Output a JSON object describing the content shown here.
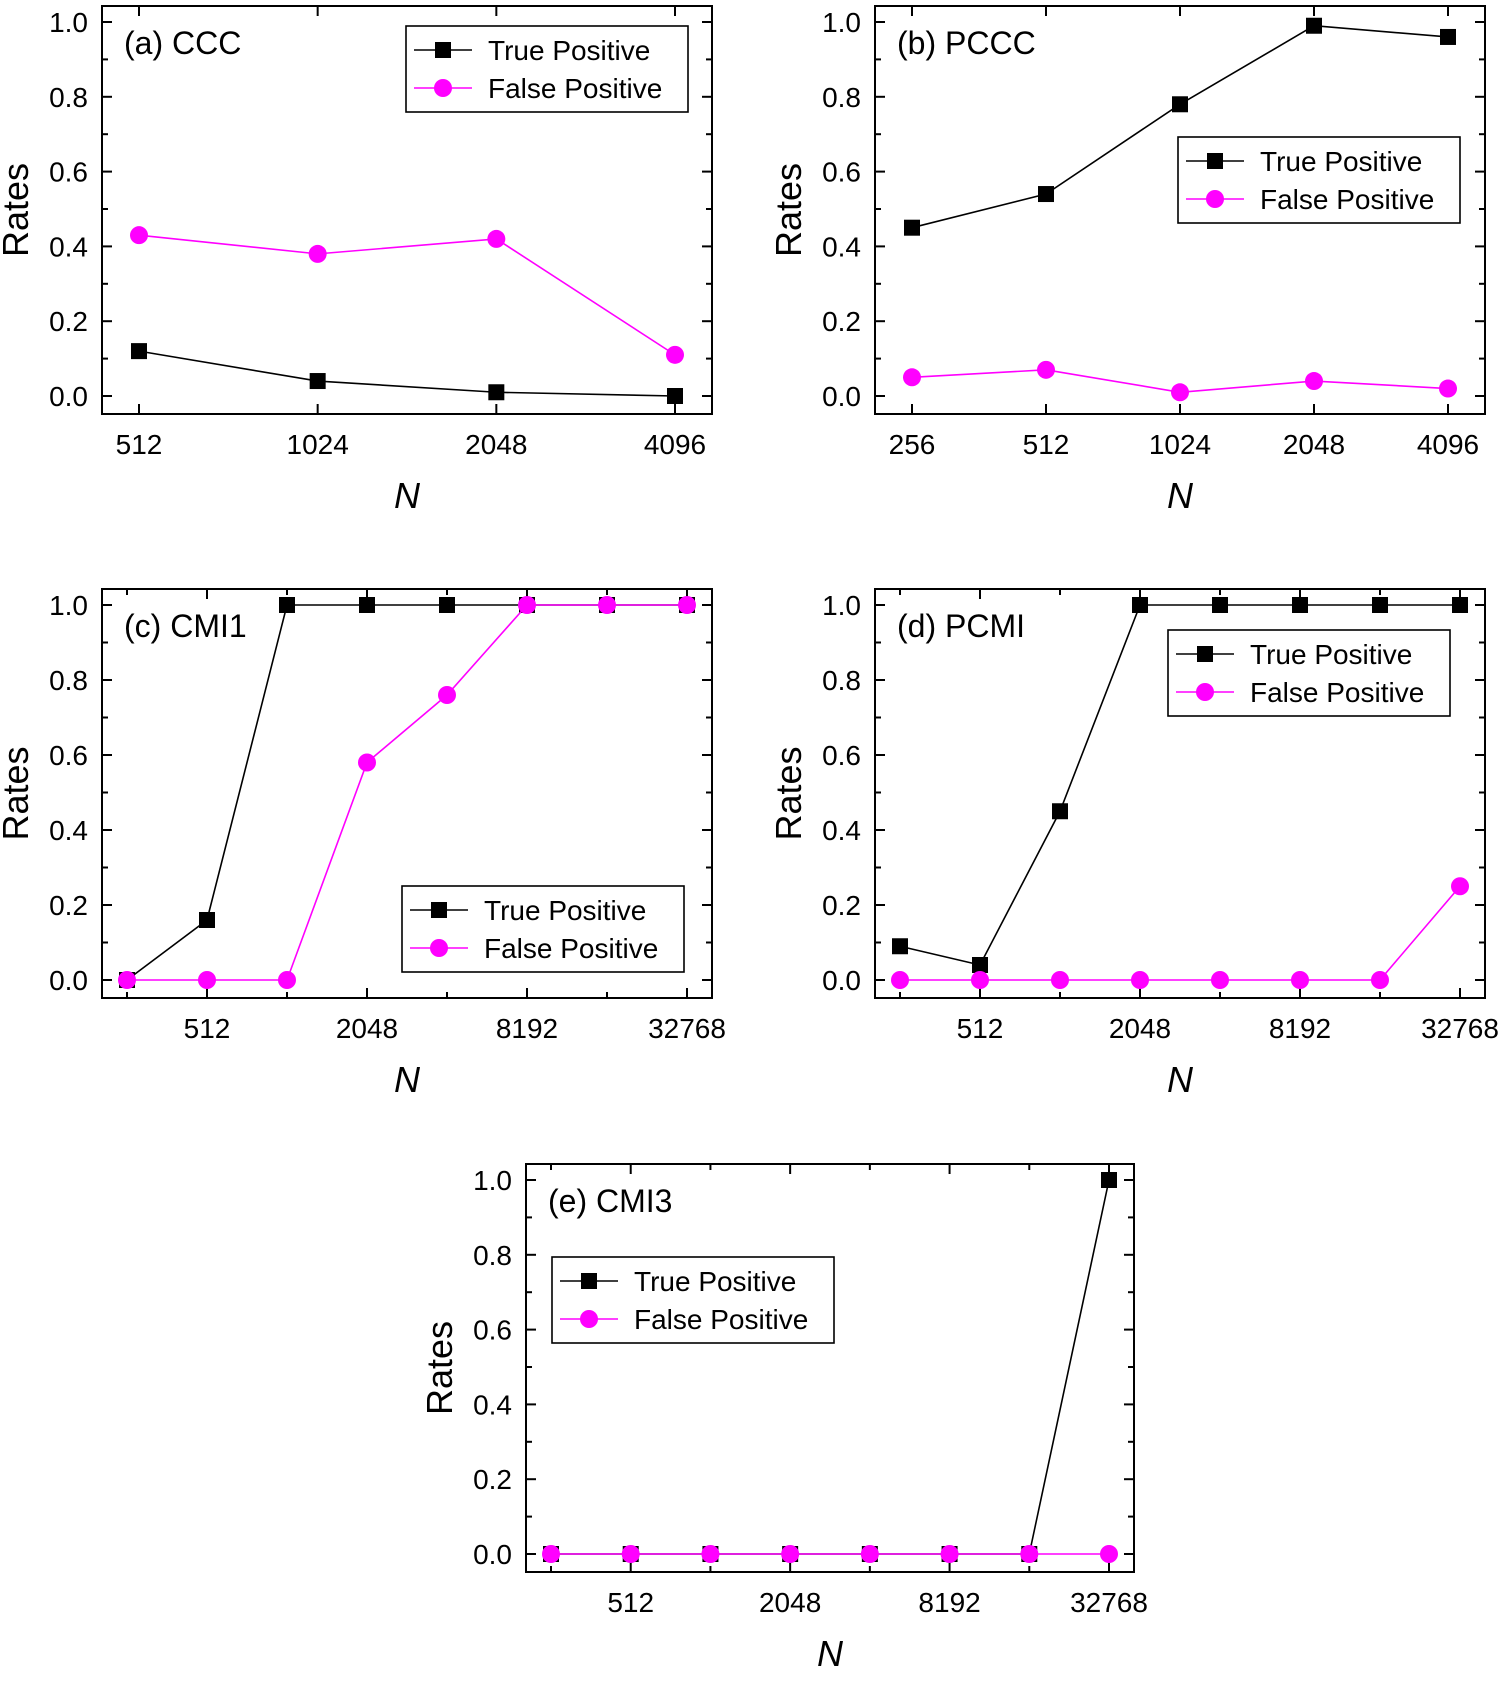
{
  "chart_data": [
    {
      "type": "line",
      "title": "(a)  CCC",
      "xlabel": "N",
      "ylabel": "Rates",
      "x": [
        512,
        1024,
        2048,
        4096
      ],
      "x_scale": "log2",
      "xticks": [
        "512",
        "1024",
        "2048",
        "4096"
      ],
      "ylim": [
        0,
        1.0
      ],
      "yticks": [
        "0.0",
        "0.2",
        "0.4",
        "0.6",
        "0.8",
        "1.0"
      ],
      "legend_position": "top-right",
      "series": [
        {
          "name": "True Positive",
          "values": [
            0.12,
            0.04,
            0.01,
            0.0
          ],
          "color": "#000000",
          "marker": "square"
        },
        {
          "name": "False Positive",
          "values": [
            0.43,
            0.38,
            0.42,
            0.11
          ],
          "color": "#ff00ff",
          "marker": "circle"
        }
      ]
    },
    {
      "type": "line",
      "title": "(b) PCCC",
      "xlabel": "N",
      "ylabel": "Rates",
      "x": [
        256,
        512,
        1024,
        2048,
        4096
      ],
      "x_scale": "log2",
      "xticks": [
        "256",
        "512",
        "1024",
        "2048",
        "4096"
      ],
      "ylim": [
        0,
        1.0
      ],
      "yticks": [
        "0.0",
        "0.2",
        "0.4",
        "0.6",
        "0.8",
        "1.0"
      ],
      "legend_position": "middle-right",
      "series": [
        {
          "name": "True Positive",
          "values": [
            0.45,
            0.54,
            0.78,
            0.99,
            0.96
          ],
          "color": "#000000",
          "marker": "square"
        },
        {
          "name": "False Positive",
          "values": [
            0.05,
            0.07,
            0.01,
            0.04,
            0.02
          ],
          "color": "#ff00ff",
          "marker": "circle"
        }
      ]
    },
    {
      "type": "line",
      "title": "(c) CMI1",
      "xlabel": "N",
      "ylabel": "Rates",
      "x": [
        256,
        512,
        1024,
        2048,
        4096,
        8192,
        16384,
        32768
      ],
      "x_scale": "log2",
      "xticks": [
        "512",
        "2048",
        "8192",
        "32768"
      ],
      "ylim": [
        0,
        1.0
      ],
      "yticks": [
        "0.0",
        "0.2",
        "0.4",
        "0.6",
        "0.8",
        "1.0"
      ],
      "legend_position": "bottom-right",
      "series": [
        {
          "name": "True Positive",
          "values": [
            0.0,
            0.16,
            1.0,
            1.0,
            1.0,
            1.0,
            1.0,
            1.0
          ],
          "color": "#000000",
          "marker": "square"
        },
        {
          "name": "False Positive",
          "values": [
            0.0,
            0.0,
            0.0,
            0.58,
            0.76,
            1.0,
            1.0,
            1.0
          ],
          "color": "#ff00ff",
          "marker": "circle"
        }
      ]
    },
    {
      "type": "line",
      "title": "(d) PCMI",
      "xlabel": "N",
      "ylabel": "Rates",
      "x": [
        256,
        512,
        1024,
        2048,
        4096,
        8192,
        16384,
        32768
      ],
      "x_scale": "log2",
      "xticks": [
        "512",
        "2048",
        "8192",
        "32768"
      ],
      "ylim": [
        0,
        1.0
      ],
      "yticks": [
        "0.0",
        "0.2",
        "0.4",
        "0.6",
        "0.8",
        "1.0"
      ],
      "legend_position": "top-right",
      "series": [
        {
          "name": "True Positive",
          "values": [
            0.09,
            0.04,
            0.45,
            1.0,
            1.0,
            1.0,
            1.0,
            1.0
          ],
          "color": "#000000",
          "marker": "square"
        },
        {
          "name": "False Positive",
          "values": [
            0.0,
            0.0,
            0.0,
            0.0,
            0.0,
            0.0,
            0.0,
            0.25
          ],
          "color": "#ff00ff",
          "marker": "circle"
        }
      ]
    },
    {
      "type": "line",
      "title": "(e) CMI3",
      "xlabel": "N",
      "ylabel": "Rates",
      "x": [
        256,
        512,
        1024,
        2048,
        4096,
        8192,
        16384,
        32768
      ],
      "x_scale": "log2",
      "xticks": [
        "512",
        "2048",
        "8192",
        "32768"
      ],
      "ylim": [
        0,
        1.0
      ],
      "yticks": [
        "0.0",
        "0.2",
        "0.4",
        "0.6",
        "0.8",
        "1.0"
      ],
      "legend_position": "top-left",
      "series": [
        {
          "name": "True Positive",
          "values": [
            0.0,
            0.0,
            0.0,
            0.0,
            0.0,
            0.0,
            0.0,
            1.0
          ],
          "color": "#000000",
          "marker": "square"
        },
        {
          "name": "False Positive",
          "values": [
            0.0,
            0.0,
            0.0,
            0.0,
            0.0,
            0.0,
            0.0,
            0.0
          ],
          "color": "#ff00ff",
          "marker": "circle"
        }
      ]
    }
  ]
}
